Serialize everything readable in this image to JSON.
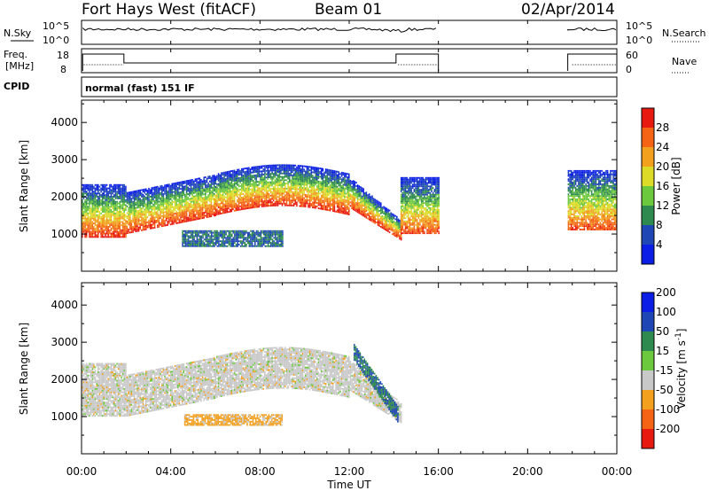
{
  "header": {
    "title": "Fort Hays West (fitACF)",
    "beam": "Beam 01",
    "date": "02/Apr/2014"
  },
  "noise_panel": {
    "left_label": "N.Sky",
    "right_label": "N.Search",
    "left_ticks": [
      "10^5",
      "10^0"
    ],
    "right_ticks": [
      "10^5",
      "10^0"
    ]
  },
  "freq_panel": {
    "left_label_1": "Freq.",
    "left_label_2": "[MHz]",
    "right_label": "Nave",
    "left_ticks": [
      "18",
      "8"
    ],
    "right_ticks": [
      "60",
      "0"
    ]
  },
  "cpid_panel": {
    "label": "CPID",
    "text": "normal (fast) 151 IF"
  },
  "colors": {
    "power": [
      "#0a1ee6",
      "#1e46b4",
      "#2e8a4e",
      "#6cc83c",
      "#dcdc28",
      "#f2a01e",
      "#f46414",
      "#e81a10"
    ],
    "velocity": [
      "#e81a10",
      "#f46414",
      "#f2a01e",
      "#c8c8c8",
      "#6cc83c",
      "#2e8a4e",
      "#1e46b4",
      "#0a1ee6"
    ]
  },
  "chart_data": [
    {
      "type": "heatmap",
      "quantity": "Power",
      "ylabel": "Slant Range [km]",
      "ylim": [
        0,
        4600
      ],
      "yticks": [
        "1000",
        "2000",
        "3000",
        "4000"
      ],
      "xlim": [
        0,
        24
      ],
      "colorbar": {
        "label": "Power [dB]",
        "ticks": [
          "4",
          "8",
          "12",
          "16",
          "20",
          "24",
          "28"
        ],
        "range": [
          0,
          32
        ]
      },
      "gaps_UT": [
        [
          16,
          21.8
        ]
      ],
      "features": [
        {
          "name": "main band",
          "t_start": 0,
          "t_end": 14.3,
          "range_km": [
            900,
            2600
          ],
          "peak_power_dB": 30
        },
        {
          "name": "secondary patch",
          "t_start": 4.5,
          "t_end": 9.0,
          "range_km": [
            650,
            1100
          ],
          "power_dB": 8
        },
        {
          "name": "late band",
          "t_start": 14.3,
          "t_end": 16.0,
          "range_km": [
            1000,
            2500
          ],
          "peak_power_dB": 28
        },
        {
          "name": "early morning band",
          "t_start": 21.8,
          "t_end": 24.0,
          "range_km": [
            1100,
            2700
          ],
          "peak_power_dB": 28
        }
      ]
    },
    {
      "type": "heatmap",
      "quantity": "Velocity",
      "ylabel": "Slant Range [km]",
      "ylim": [
        0,
        4600
      ],
      "yticks": [
        "1000",
        "2000",
        "3000",
        "4000"
      ],
      "xlim": [
        0,
        24
      ],
      "colorbar": {
        "label": "Velocity [m s^-1]",
        "ticks": [
          "-200",
          "-100",
          "-50",
          "-15",
          "15",
          "50",
          "100",
          "200"
        ]
      },
      "gaps_UT": [
        [
          16,
          21.8
        ]
      ],
      "features": [
        {
          "name": "ground scatter band",
          "t_start": 0,
          "t_end": 14.3,
          "range_km": [
            1000,
            2600
          ],
          "velocity": 0
        },
        {
          "name": "negative velocity patch",
          "t_start": 4.6,
          "t_end": 9.0,
          "range_km": [
            750,
            1050
          ],
          "velocity": -60
        },
        {
          "name": "positive velocity descent",
          "t_start": 12.2,
          "t_end": 14.2,
          "range_km": [
            800,
            2600
          ],
          "velocity": 50
        }
      ]
    }
  ],
  "xaxis": {
    "label": "Time UT",
    "ticks": [
      "00:00",
      "04:00",
      "08:00",
      "12:00",
      "16:00",
      "20:00",
      "00:00"
    ]
  }
}
